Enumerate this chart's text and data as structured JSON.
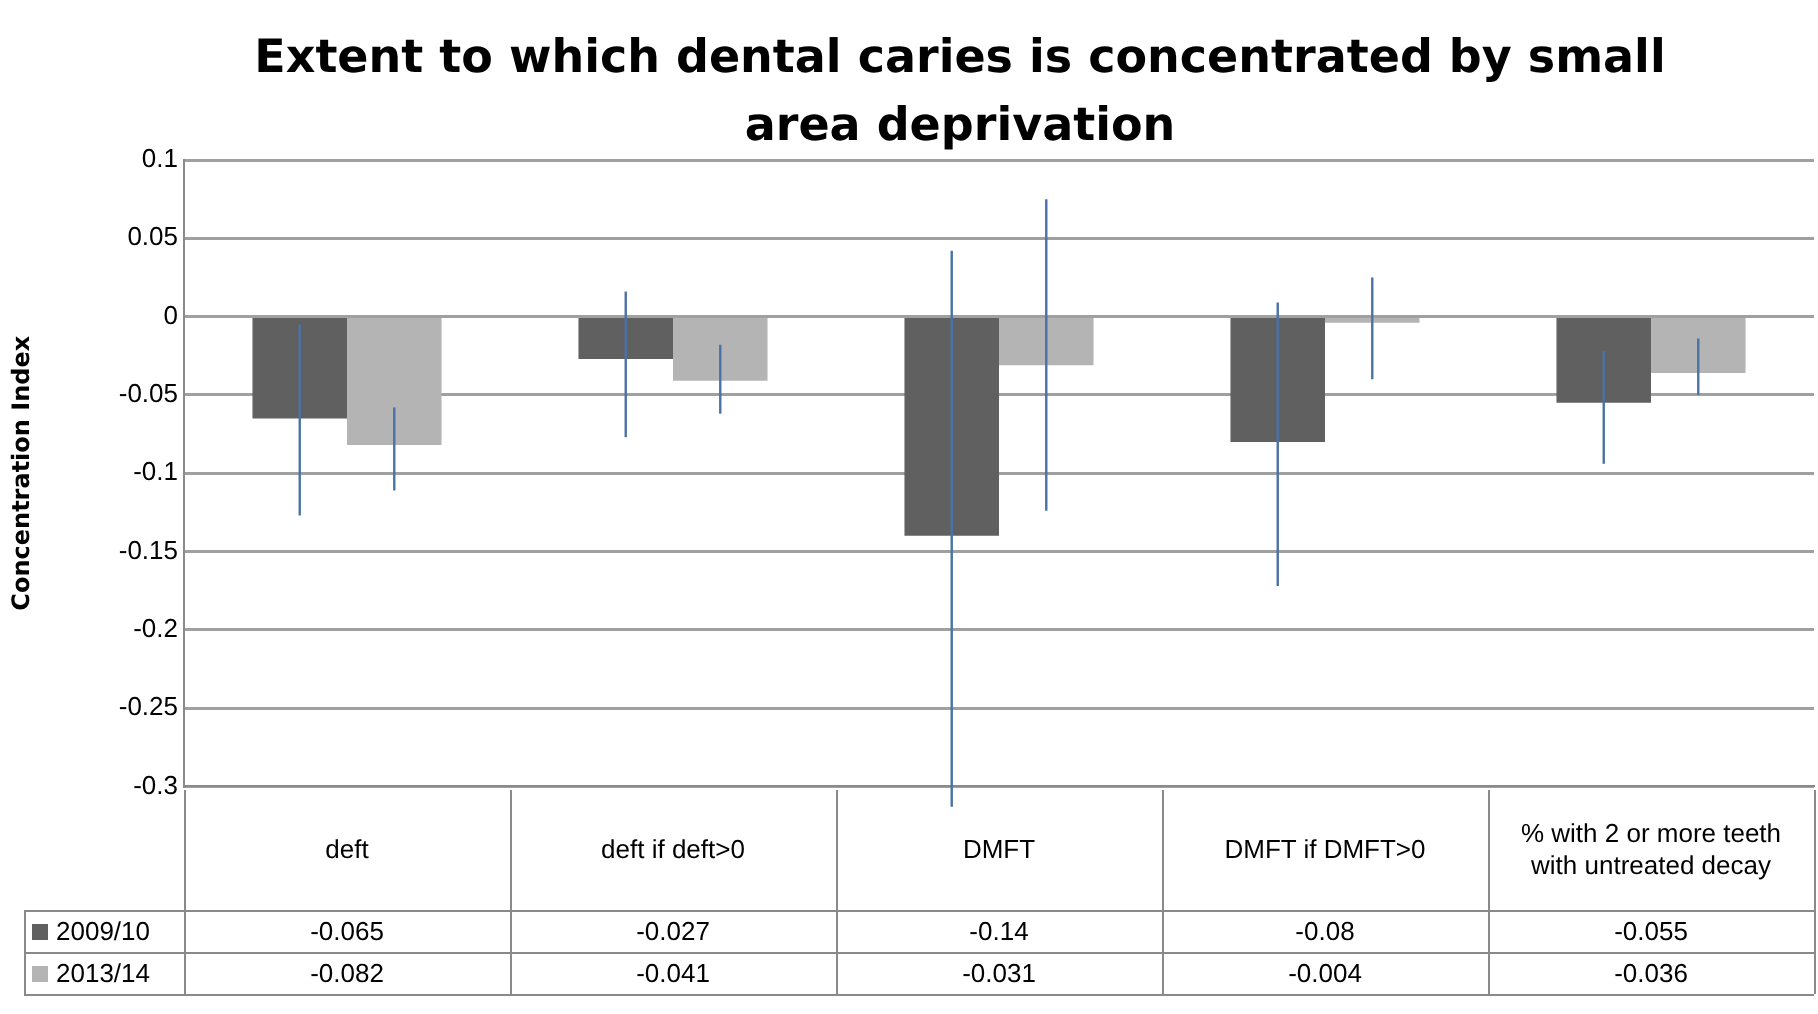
{
  "chart_data": {
    "type": "bar",
    "title": "Extent to which dental caries is concentrated by small area deprivation",
    "ylabel": "Concentration Index",
    "categories": [
      "deft",
      "deft if deft>0",
      "DMFT",
      "DMFT if DMFT>0",
      "% with 2 or more teeth with untreated decay"
    ],
    "series": [
      {
        "name": "2009/10",
        "color": "#606060",
        "values": [
          -0.065,
          -0.027,
          -0.14,
          -0.08,
          -0.055
        ],
        "errors": [
          [
            -0.127,
            -0.005
          ],
          [
            -0.077,
            0.016
          ],
          [
            -0.313,
            0.042
          ],
          [
            -0.172,
            0.009
          ],
          [
            -0.094,
            -0.022
          ]
        ]
      },
      {
        "name": "2013/14",
        "color": "#b4b4b4",
        "values": [
          -0.082,
          -0.041,
          -0.031,
          -0.004,
          -0.036
        ],
        "errors": [
          [
            -0.111,
            -0.058
          ],
          [
            -0.062,
            -0.018
          ],
          [
            -0.124,
            0.075
          ],
          [
            -0.04,
            0.025
          ],
          [
            -0.05,
            -0.014
          ]
        ]
      }
    ],
    "ylim": [
      -0.3,
      0.1
    ],
    "yticks": [
      -0.3,
      -0.25,
      -0.2,
      -0.15,
      -0.1,
      -0.05,
      0,
      0.05,
      0.1
    ],
    "grid": "y",
    "legend": "bottom",
    "data_labels": true
  }
}
